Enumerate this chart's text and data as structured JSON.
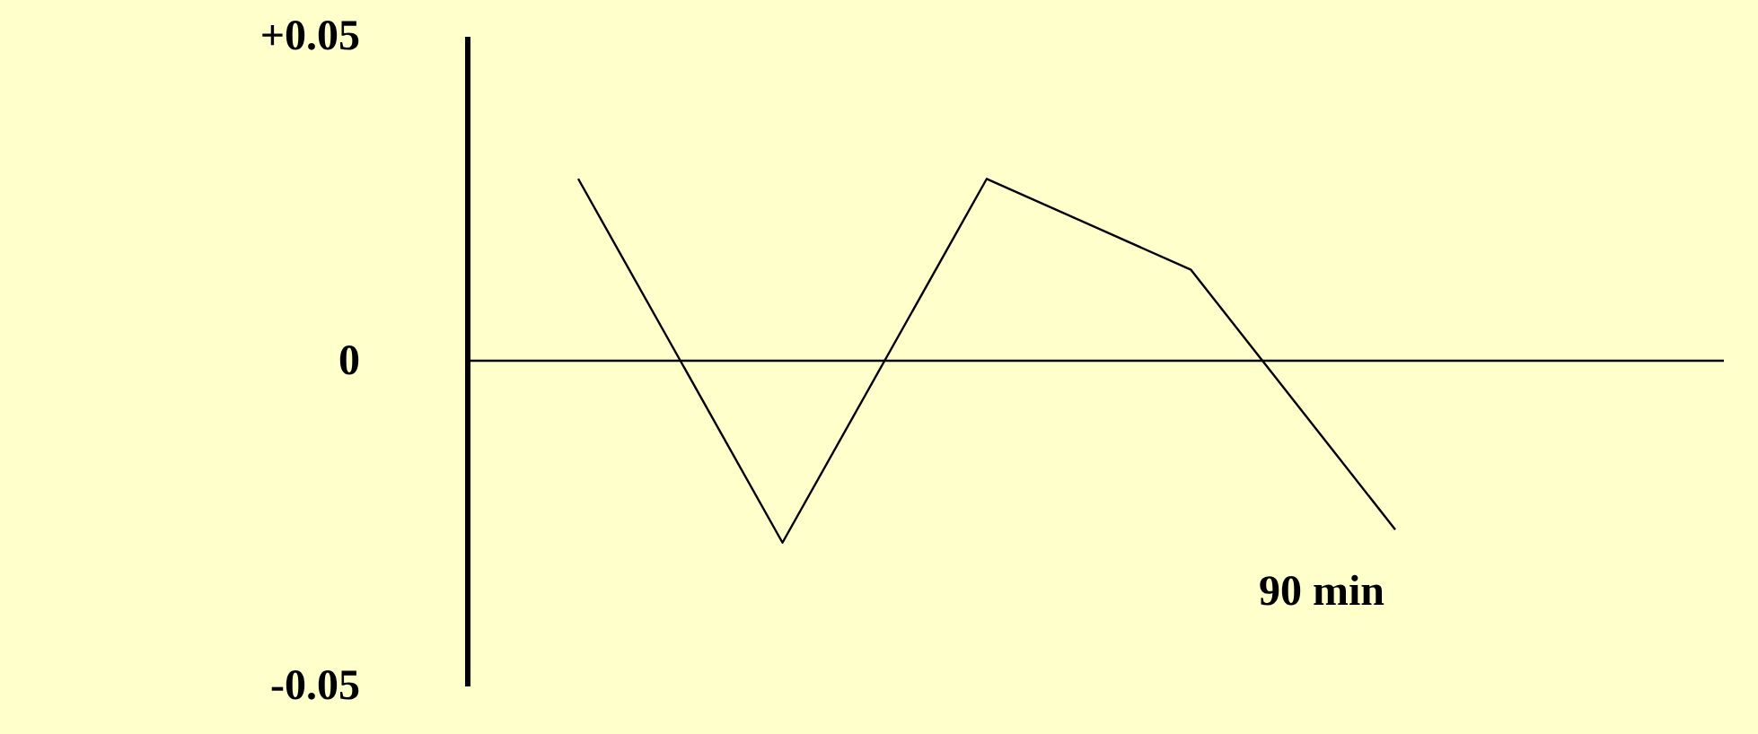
{
  "chart_data": {
    "type": "line",
    "categories": [
      null,
      null,
      null,
      null,
      null
    ],
    "series": [
      {
        "color": "#000000",
        "values": [
          0.028,
          -0.028,
          0.028,
          0.014,
          -0.026
        ]
      }
    ],
    "ylim": [
      -0.05,
      0.05
    ],
    "yticks": [
      {
        "value": 0.05,
        "label": "+0.05"
      },
      0,
      -0.05
    ],
    "tick_labels": "y",
    "ref_lines": [
      {
        "axis": "y",
        "value": 0,
        "color": "#000000"
      }
    ],
    "annotations": [
      "90  min"
    ],
    "grid": false,
    "marker": "none",
    "line_style": "solid"
  }
}
